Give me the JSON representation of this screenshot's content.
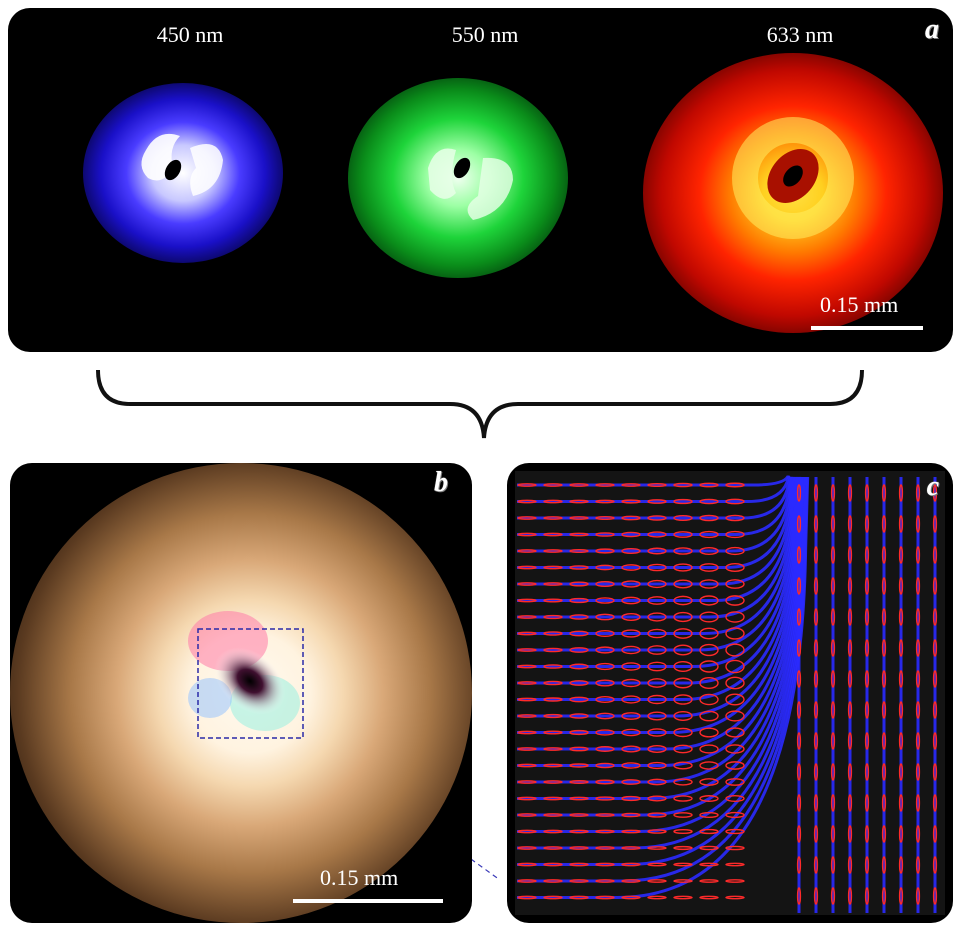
{
  "panel_a": {
    "letter": "a",
    "wavelengths": [
      "450 nm",
      "550 nm",
      "633 nm"
    ],
    "scalebar_label": "0.15 mm",
    "colors": {
      "blue_beam": "#3a2cff",
      "green_beam": "#16d12a",
      "red_beam": "#ff2a00",
      "red_core": "#ffe040"
    }
  },
  "panel_b": {
    "letter": "b",
    "scalebar_label": "0.15 mm",
    "colors": {
      "halo": "#b8855a",
      "core": "#fff6e6",
      "zoom_box": "#2a2aa8"
    }
  },
  "panel_c": {
    "letter": "c",
    "colors": {
      "streamlines": "#2a2aff",
      "ellipses": "#ff2a2a"
    }
  }
}
